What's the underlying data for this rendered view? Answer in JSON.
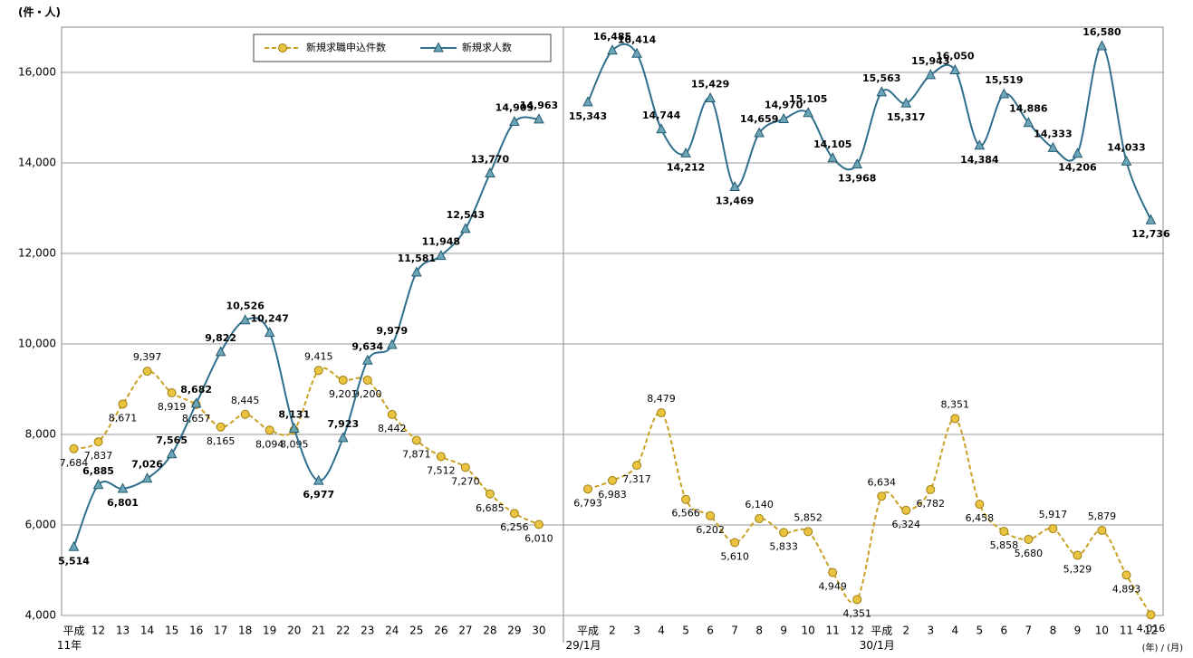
{
  "chart_data": {
    "type": "line",
    "y_unit": "(件・人)",
    "x_unit": "(年) / (月)",
    "categories": [
      "平成\n11年",
      "12",
      "13",
      "14",
      "15",
      "16",
      "17",
      "18",
      "19",
      "20",
      "21",
      "22",
      "23",
      "24",
      "25",
      "26",
      "27",
      "28",
      "29",
      "30",
      null,
      "平成\n29/1月",
      "2",
      "3",
      "4",
      "5",
      "6",
      "7",
      "8",
      "9",
      "10",
      "11",
      "12",
      "平成\n30/1月",
      "2",
      "3",
      "4",
      "5",
      "6",
      "7",
      "8",
      "9",
      "10",
      "11",
      "12"
    ],
    "series": [
      {
        "name": "新規求職申込件数",
        "color": "#c9a224",
        "marker": "circle",
        "dashed": true,
        "values": [
          7684,
          7837,
          8671,
          9397,
          8919,
          8657,
          8165,
          8445,
          8094,
          8095,
          9415,
          9201,
          9200,
          8442,
          7871,
          7512,
          7270,
          6685,
          6256,
          6010,
          null,
          6793,
          6983,
          7317,
          8479,
          6566,
          6202,
          5610,
          6140,
          5833,
          5852,
          4949,
          4351,
          6634,
          6324,
          6782,
          8351,
          6458,
          5858,
          5680,
          5917,
          5329,
          5879,
          4893,
          4016
        ],
        "value_labels": [
          "7,684",
          "7,837",
          "8,671",
          "9,397",
          "8,919",
          "8,657",
          "8,165",
          "8,445",
          "8,094",
          "8,095",
          "9,415",
          "9,201",
          "9,200",
          "8,442",
          "7,871",
          "7,512",
          "7,270",
          "6,685",
          "6,256",
          "6,010",
          null,
          "6,793",
          "6,983",
          "7,317",
          "8,479",
          "6,566",
          "6,202",
          "5,610",
          "6,140",
          "5,833",
          "5,852",
          "4,949",
          "4,351",
          "6,634",
          "6,324",
          "6,782",
          "8,351",
          "6,458",
          "5,858",
          "5,680",
          "5,917",
          "5,329",
          "5,879",
          "4,893",
          "4,016"
        ]
      },
      {
        "name": "新規求人数",
        "color": "#2f6f8c",
        "marker": "triangle",
        "dashed": false,
        "values": [
          5514,
          6885,
          6801,
          7026,
          7565,
          8682,
          9822,
          10526,
          10247,
          8131,
          6977,
          7923,
          9634,
          9979,
          11581,
          11948,
          12543,
          13770,
          14909,
          14963,
          null,
          15343,
          16485,
          16414,
          14744,
          14212,
          15429,
          13469,
          14659,
          14970,
          15105,
          14105,
          13968,
          15563,
          15317,
          15943,
          16050,
          14384,
          15519,
          14886,
          14333,
          14206,
          16580,
          14033,
          12736
        ],
        "value_labels": [
          "5,514",
          "6,885",
          "6,801",
          "7,026",
          "7,565",
          "8,682",
          "9,822",
          "10,526",
          "10,247",
          "8,131",
          "6,977",
          "7,923",
          "9,634",
          "9,979",
          "11,581",
          "11,948",
          "12,543",
          "13,770",
          "14,909",
          "14,963",
          null,
          "15,343",
          "16,485",
          "16,414",
          "14,744",
          "14,212",
          "15,429",
          "13,469",
          "14,659",
          "14,970",
          "15,105",
          "14,105",
          "13,968",
          "15,563",
          "15,317",
          "15,943",
          "16,050",
          "14,384",
          "15,519",
          "14,886",
          "14,333",
          "14,206",
          "16,580",
          "14,033",
          "12,736"
        ]
      }
    ],
    "ylim": [
      4000,
      17000
    ],
    "yticks": [
      {
        "value": 4000,
        "label": "4,000"
      },
      {
        "value": 6000,
        "label": "6,000"
      },
      {
        "value": 8000,
        "label": "8,000"
      },
      {
        "value": 10000,
        "label": "10,000"
      },
      {
        "value": 12000,
        "label": "12,000"
      },
      {
        "value": 14000,
        "label": "14,000"
      },
      {
        "value": 16000,
        "label": "16,000"
      }
    ],
    "grid": true,
    "legend": "top"
  }
}
